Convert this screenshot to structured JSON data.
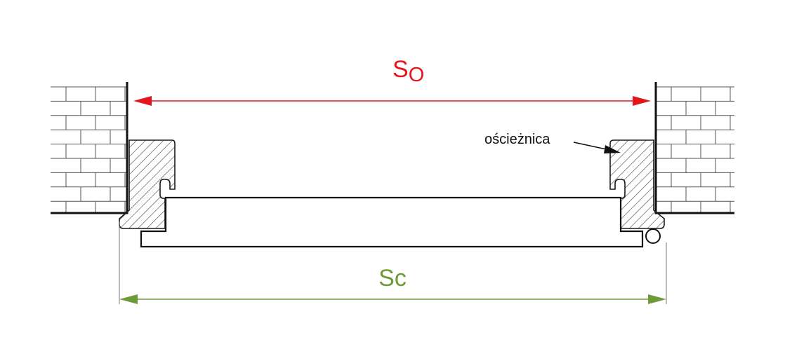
{
  "labels": {
    "so_main": "S",
    "so_sub": "O",
    "sc": "Sc",
    "frame": "ościeżnica"
  },
  "colors": {
    "so": "#e3161b",
    "sc": "#6e9a3a",
    "line": "#1a1a1a",
    "ext": "#7a7a7a"
  }
}
